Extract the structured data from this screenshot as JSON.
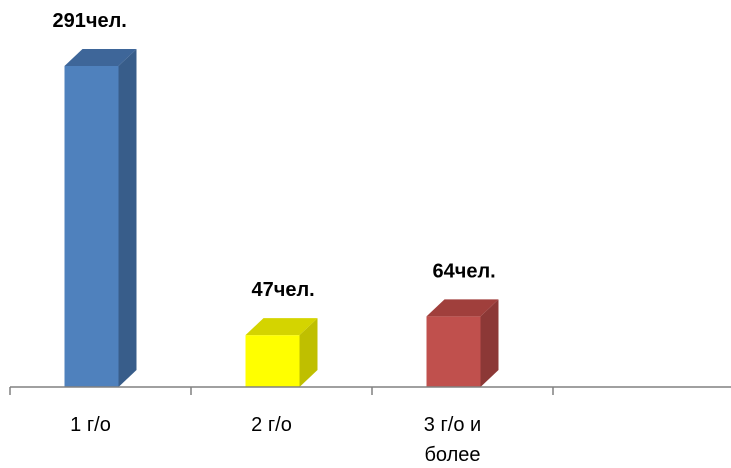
{
  "chart_data": {
    "type": "bar",
    "categories": [
      "1 г/о",
      "2 г/о",
      "3 г/о и более",
      ""
    ],
    "values": [
      291,
      47,
      64,
      null
    ],
    "data_labels": [
      "291чел.",
      "47чел.",
      "64чел.",
      ""
    ],
    "ylim": [
      0,
      300
    ],
    "grid": false,
    "colors": [
      {
        "front": "#4f81bd",
        "side": "#385d8a",
        "top": "#3e6699"
      },
      {
        "front": "#ffff00",
        "side": "#bfbf00",
        "top": "#d4d400"
      },
      {
        "front": "#c0504d",
        "side": "#8c3836",
        "top": "#a03f3c"
      }
    ]
  }
}
